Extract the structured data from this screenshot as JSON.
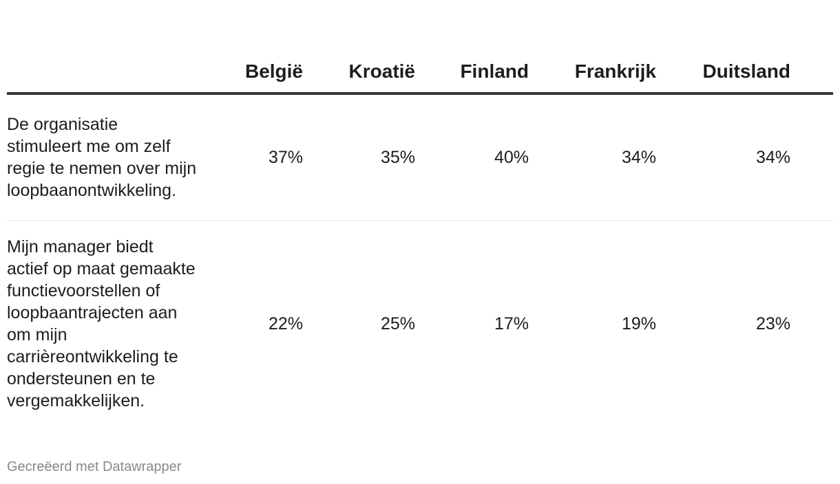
{
  "chart_data": {
    "type": "table",
    "columns": [
      "",
      "België",
      "Kroatië",
      "Finland",
      "Frankrijk",
      "Duitsland"
    ],
    "rows": [
      {
        "label": "De organisatie stimuleert me om zelf regie te nemen over mijn loopbaanontwikkeling.",
        "values": [
          "37%",
          "35%",
          "40%",
          "34%",
          "34%"
        ]
      },
      {
        "label": "Mijn manager biedt actief op maat gemaakte functievoorstellen of loopbaantrajecten aan om mijn carrièreontwikkeling te ondersteunen en te vergemakkelijken.",
        "values": [
          "22%",
          "25%",
          "17%",
          "19%",
          "23%"
        ]
      }
    ]
  },
  "footer": {
    "credit": "Gecreëerd met Datawrapper"
  }
}
